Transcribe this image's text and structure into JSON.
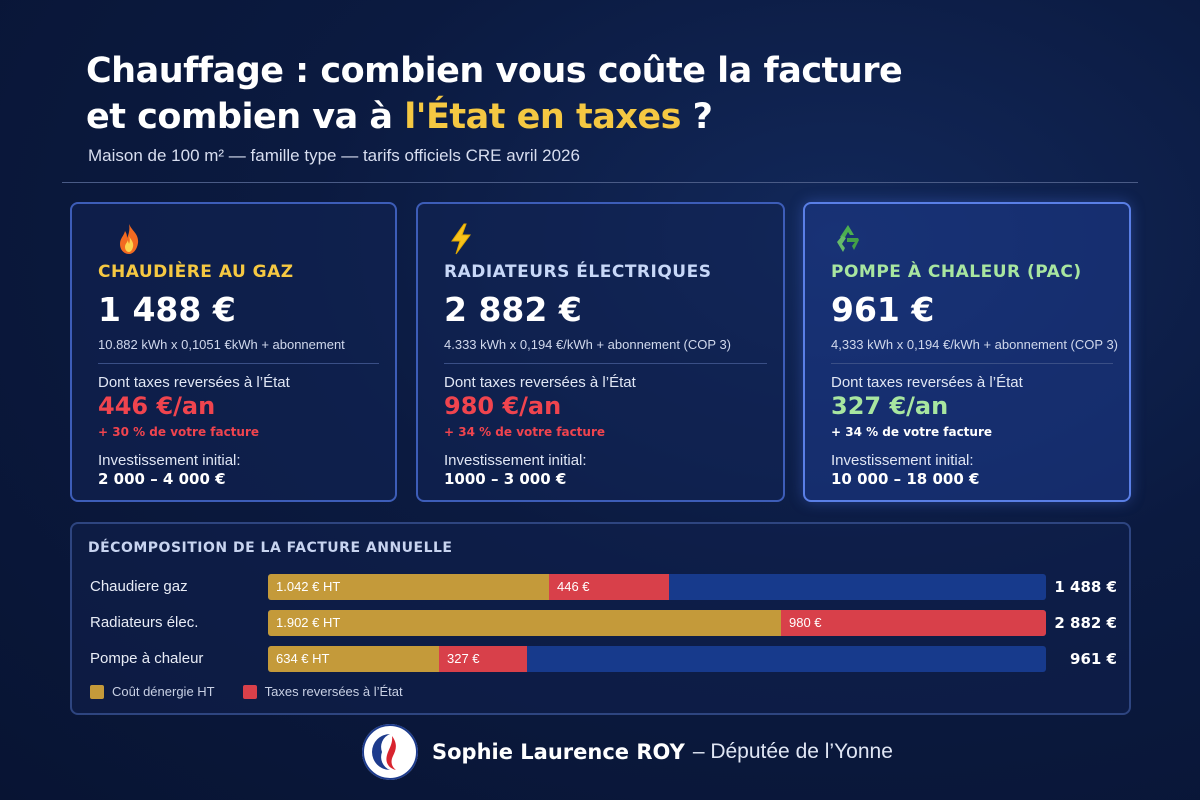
{
  "header": {
    "title_line1": "Chauffage : combien vous coûte la facture",
    "title_line2_prefix": "et combien va à ",
    "title_line2_highlight": "l'État en taxes",
    "title_line2_suffix": " ?",
    "subtitle": "Maison de 100 m² — famille type — tarifs officiels CRE avril 2026",
    "highlight_color": "#f5c842"
  },
  "cards": [
    {
      "icon": "flame-icon",
      "name": "CHAUDIÈRE AU GAZ",
      "price": "1 488 €",
      "formula": "10.882 kWh x 0,1051 €kWh + abonnement",
      "tax_label": "Dont taxes reversées à l’État",
      "tax_value": "446 €/an",
      "tax_pct": "+ 30 % de votre facture",
      "inv_label": "Investissement initial:",
      "inv_value": "2 000 – 4 000 €"
    },
    {
      "icon": "lightning-icon",
      "name": "RADIATEURS ÉLECTRIQUES",
      "price": "2 882 €",
      "formula": "4.333 kWh x 0,194 €/kWh + abonnement (COP 3)",
      "tax_label": "Dont taxes reversées à l’État",
      "tax_value": "980 €/an",
      "tax_pct": "+ 34 % de votre facture",
      "inv_label": "Investissement initial:",
      "inv_value": "1000 – 3 000 €"
    },
    {
      "icon": "recycle-icon",
      "name": "POMPE À CHALEUR (PAC)",
      "price": "961 €",
      "formula": "4,333 kWh x 0,194 €/kWh + abonnement (COP 3)",
      "tax_label": "Dont taxes reversées à l’État",
      "tax_value": "327 €/an",
      "tax_pct": "+ 34 % de votre facture",
      "inv_label": "Investissement initial:",
      "inv_value": "10 000 – 18 000 €"
    }
  ],
  "chart_data": {
    "type": "bar",
    "title": "DÉCOMPOSITION DE LA FACTURE ANNUELLE",
    "categories": [
      "Chaudiere gaz",
      "Radiateurs élec.",
      "Pompe à chaleur"
    ],
    "series": [
      {
        "name": "Coût dénergie HT",
        "values": [
          1042,
          1902,
          634
        ],
        "labels": [
          "1.042 € HT",
          "1.902 € HT",
          "634 € HT"
        ],
        "color": "#c49a3a"
      },
      {
        "name": "Taxes reversées à l’État",
        "values": [
          446,
          980,
          327
        ],
        "labels": [
          "446 €",
          "980 €",
          "327 €"
        ],
        "color": "#d8404a"
      }
    ],
    "totals": [
      "1 488 €",
      "2 882 €",
      "961 €"
    ],
    "xlim": [
      0,
      2882
    ],
    "legend": "bottom-left"
  },
  "footer": {
    "name": "Sophie Laurence ROY",
    "role": "– Députée de l’Yonne"
  }
}
